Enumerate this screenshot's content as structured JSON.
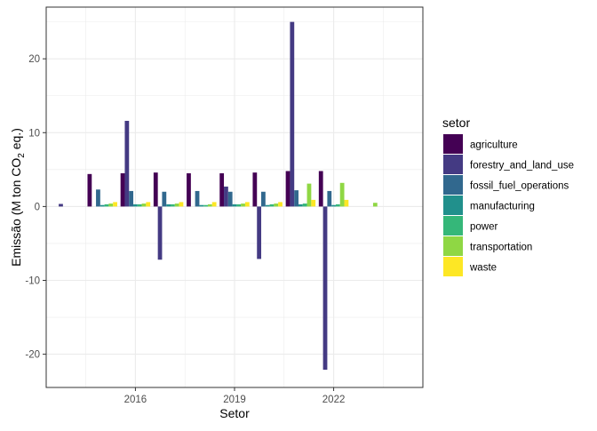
{
  "chart_data": {
    "type": "bar",
    "xlabel": "Setor",
    "ylabel_main": "Emissão (M ton CO",
    "ylabel_sub": "2",
    "ylabel_tail": " eq.)",
    "x_ticks": [
      {
        "label": "2016",
        "value": 2016
      },
      {
        "label": "2019",
        "value": 2019
      },
      {
        "label": "2022",
        "value": 2022
      }
    ],
    "y_ticks": [
      {
        "label": "-20",
        "value": -20
      },
      {
        "label": "-10",
        "value": -10
      },
      {
        "label": "0",
        "value": 0
      },
      {
        "label": "10",
        "value": 10
      },
      {
        "label": "20",
        "value": 20
      }
    ],
    "xlim": [
      2013.3,
      2024.7
    ],
    "ylim": [
      -24.5,
      27
    ],
    "grid": true,
    "legend": {
      "title": "setor",
      "placement": "right"
    },
    "series": [
      {
        "name": "agriculture",
        "color": "#440154",
        "points": [
          [
            2015,
            4.4
          ],
          [
            2016,
            4.5
          ],
          [
            2017,
            4.6
          ],
          [
            2018,
            4.5
          ],
          [
            2019,
            4.5
          ],
          [
            2020,
            4.6
          ],
          [
            2021,
            4.8
          ],
          [
            2022,
            4.8
          ]
        ]
      },
      {
        "name": "forestry_and_land_use",
        "color": "#443A83",
        "points": [
          [
            2014,
            0.35
          ],
          [
            2016,
            11.6
          ],
          [
            2017,
            -7.2
          ],
          [
            2019,
            2.7
          ],
          [
            2020,
            -7.1
          ],
          [
            2021,
            25.0
          ],
          [
            2022,
            -22.1
          ]
        ]
      },
      {
        "name": "fossil_fuel_operations",
        "color": "#31688E",
        "points": [
          [
            2015,
            2.3
          ],
          [
            2016,
            2.1
          ],
          [
            2017,
            2.0
          ],
          [
            2018,
            2.1
          ],
          [
            2019,
            2.0
          ],
          [
            2020,
            2.0
          ],
          [
            2021,
            2.2
          ],
          [
            2022,
            2.1
          ]
        ]
      },
      {
        "name": "manufacturing",
        "color": "#21908C",
        "points": [
          [
            2015,
            0.2
          ],
          [
            2016,
            0.3
          ],
          [
            2017,
            0.3
          ],
          [
            2018,
            0.2
          ],
          [
            2019,
            0.3
          ],
          [
            2020,
            0.2
          ],
          [
            2021,
            0.3
          ],
          [
            2022,
            0.2
          ]
        ]
      },
      {
        "name": "power",
        "color": "#35B779",
        "points": [
          [
            2015,
            0.3
          ],
          [
            2016,
            0.3
          ],
          [
            2017,
            0.3
          ],
          [
            2018,
            0.2
          ],
          [
            2019,
            0.3
          ],
          [
            2020,
            0.3
          ],
          [
            2021,
            0.4
          ],
          [
            2022,
            0.3
          ]
        ]
      },
      {
        "name": "transportation",
        "color": "#8FD744",
        "points": [
          [
            2015,
            0.4
          ],
          [
            2016,
            0.4
          ],
          [
            2017,
            0.4
          ],
          [
            2018,
            0.3
          ],
          [
            2019,
            0.4
          ],
          [
            2020,
            0.4
          ],
          [
            2021,
            3.1
          ],
          [
            2022,
            3.2
          ],
          [
            2023,
            0.5
          ]
        ]
      },
      {
        "name": "waste",
        "color": "#FDE725",
        "points": [
          [
            2015,
            0.6
          ],
          [
            2016,
            0.6
          ],
          [
            2017,
            0.6
          ],
          [
            2018,
            0.6
          ],
          [
            2019,
            0.6
          ],
          [
            2020,
            0.6
          ],
          [
            2021,
            0.9
          ],
          [
            2022,
            0.9
          ]
        ]
      }
    ]
  }
}
